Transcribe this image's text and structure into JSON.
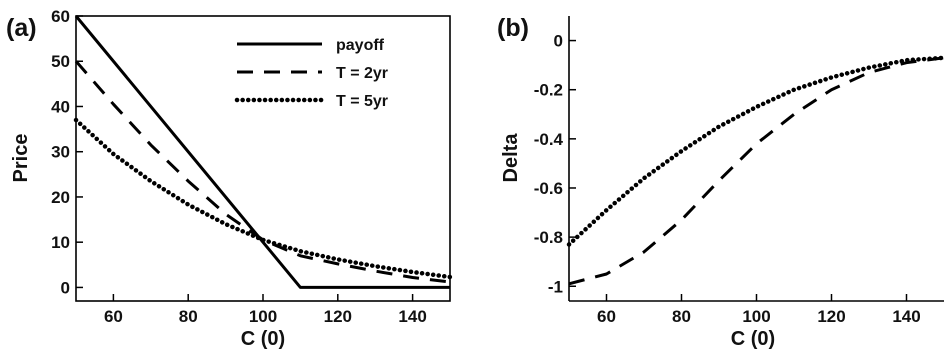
{
  "chart_data": [
    {
      "panel_label": "(a)",
      "type": "line",
      "xlabel": "C (0)",
      "ylabel": "Price",
      "xlim": [
        50,
        150
      ],
      "ylim": [
        -3,
        60
      ],
      "xticks": [
        "60",
        "80",
        "100",
        "120",
        "140"
      ],
      "yticks": [
        "0",
        "10",
        "20",
        "30",
        "40",
        "50",
        "60"
      ],
      "legend": "top-right",
      "grid": false,
      "series": [
        {
          "name": "payoff",
          "style": "solid",
          "x": [
            50,
            110,
            150
          ],
          "y": [
            60,
            0,
            0
          ]
        },
        {
          "name": "T = 2yr",
          "style": "dashed",
          "x": [
            50,
            60,
            70,
            80,
            90,
            100,
            110,
            120,
            130,
            140,
            150
          ],
          "y": [
            50,
            40.5,
            31.5,
            23.5,
            16.2,
            10.5,
            7,
            5.2,
            3.6,
            2.2,
            1.2
          ]
        },
        {
          "name": "T = 5yr",
          "style": "dotted",
          "x": [
            50,
            60,
            70,
            80,
            90,
            100,
            110,
            120,
            130,
            140,
            150
          ],
          "y": [
            37,
            29.5,
            23.5,
            18.3,
            14,
            10.5,
            8,
            6.2,
            4.7,
            3.4,
            2.3
          ]
        }
      ]
    },
    {
      "panel_label": "(b)",
      "type": "line",
      "xlabel": "C (0)",
      "ylabel": "Delta",
      "xlim": [
        50,
        150
      ],
      "ylim": [
        -1.06,
        0.1
      ],
      "xticks": [
        "60",
        "80",
        "100",
        "120",
        "140"
      ],
      "yticks": [
        "0",
        "-0.2",
        "-0.4",
        "-0.6",
        "-0.8",
        "-1"
      ],
      "grid": false,
      "series": [
        {
          "name": "T = 2yr",
          "style": "dashed",
          "x": [
            50,
            60,
            70,
            80,
            90,
            100,
            110,
            120,
            130,
            140,
            150
          ],
          "y": [
            -0.99,
            -0.95,
            -0.86,
            -0.73,
            -0.57,
            -0.42,
            -0.3,
            -0.2,
            -0.13,
            -0.09,
            -0.07
          ]
        },
        {
          "name": "T = 5yr",
          "style": "dotted",
          "x": [
            50,
            60,
            70,
            80,
            90,
            100,
            110,
            120,
            130,
            140,
            150
          ],
          "y": [
            -0.83,
            -0.69,
            -0.56,
            -0.45,
            -0.35,
            -0.27,
            -0.2,
            -0.15,
            -0.11,
            -0.08,
            -0.07
          ]
        }
      ]
    }
  ]
}
